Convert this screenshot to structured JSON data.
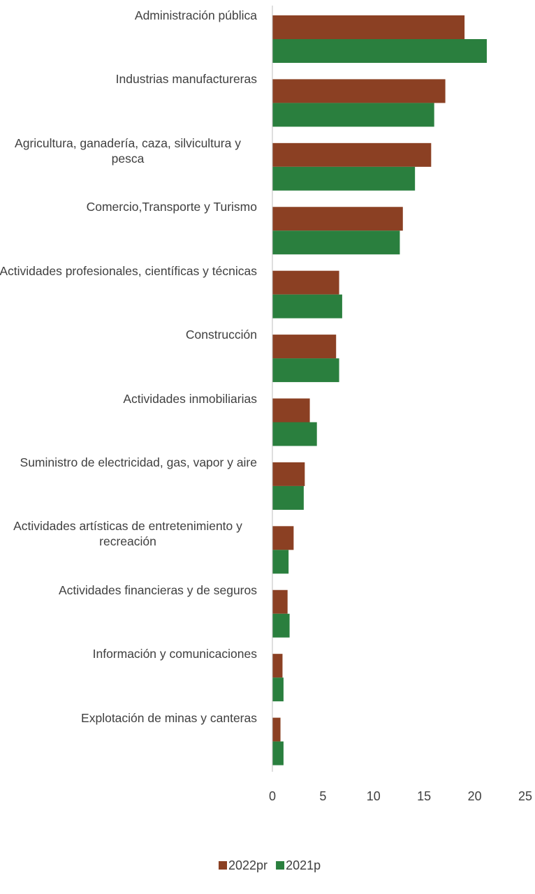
{
  "chart_data": {
    "type": "bar",
    "orientation": "horizontal",
    "categories": [
      "Administración pública",
      "Industrias manufactureras",
      "Agricultura, ganadería, caza, silvicultura y pesca",
      "Comercio,Transporte y Turismo",
      "Actividades profesionales, científicas y técnicas",
      "Construcción",
      "Actividades inmobiliarias",
      "Suministro de electricidad, gas, vapor y aire",
      "Actividades artísticas de entretenimiento y recreación",
      "Actividades financieras y de seguros",
      "Información y comunicaciones",
      "Explotación de minas y canteras"
    ],
    "series": [
      {
        "name": "2022pr",
        "color": "#8b4023",
        "values": [
          19.0,
          17.1,
          15.7,
          12.9,
          6.6,
          6.3,
          3.7,
          3.2,
          2.1,
          1.5,
          1.0,
          0.8
        ]
      },
      {
        "name": "2021p",
        "color": "#2a7f3e",
        "values": [
          21.2,
          16.0,
          14.1,
          12.6,
          6.9,
          6.6,
          4.4,
          3.1,
          1.6,
          1.7,
          1.1,
          1.1
        ]
      }
    ],
    "xlim": [
      0,
      25
    ],
    "xticks": [
      0,
      5,
      10,
      15,
      20,
      25
    ],
    "grid": false,
    "legend": "bottom"
  }
}
